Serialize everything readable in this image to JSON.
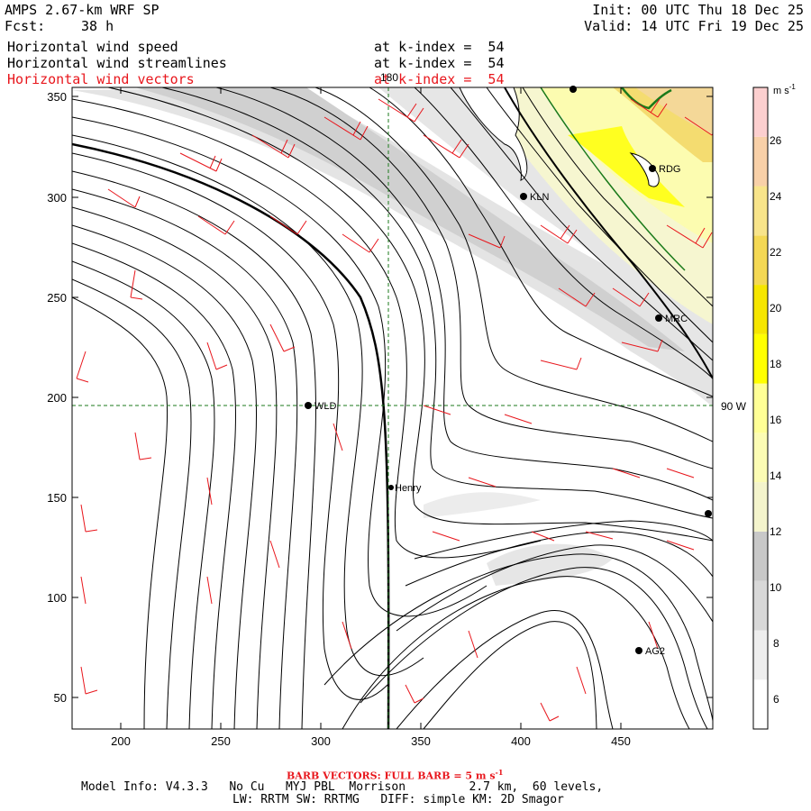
{
  "header": {
    "model": "AMPS 2.67-km WRF SP",
    "forecast_label": "Fcst:",
    "forecast_hours": "38 h",
    "init": "Init: 00 UTC Thu 18 Dec 25",
    "valid": "Valid: 14 UTC Fri 19 Dec 25"
  },
  "fields": [
    {
      "name": "Horizontal wind speed",
      "level": "at k-index =  54",
      "color": "#000000"
    },
    {
      "name": "Horizontal wind streamlines",
      "level": "at k-index =  54",
      "color": "#000000"
    },
    {
      "name": "Horizontal wind vectors",
      "level": "at k-index =  54",
      "color": "#e8161c"
    }
  ],
  "map": {
    "x_ticks": [
      "200",
      "250",
      "300",
      "350",
      "400",
      "450"
    ],
    "y_ticks": [
      "350",
      "300",
      "250",
      "200",
      "150",
      "100",
      "50"
    ],
    "meridian_label": "180",
    "parallel_label": "90 W",
    "stations": [
      {
        "id": "RDG"
      },
      {
        "id": "KLN"
      },
      {
        "id": "MRC"
      },
      {
        "id": "WLD"
      },
      {
        "id": "Henry"
      },
      {
        "id": "AG2"
      }
    ]
  },
  "colorbar": {
    "units": "m s",
    "units_exp": "-1",
    "levels": [
      "6",
      "8",
      "10",
      "12",
      "14",
      "16",
      "18",
      "20",
      "22",
      "24",
      "26"
    ],
    "colors": [
      "#ffffff",
      "#eeeeee",
      "#d8d8d8",
      "#c8c8c8",
      "#f4f4cc",
      "#fcfcb4",
      "#ffff96",
      "#ffff00",
      "#f6e600",
      "#f4d854",
      "#f8e48a",
      "#f8d0a8",
      "#fccfcf"
    ]
  },
  "footer": {
    "barb_label": "BARB VECTORS: FULL BARB = 5 m s",
    "barb_exp": "-1",
    "model_info": "Model Info: V4.3.3   No Cu   MYJ PBL  Morrison         2.7 km,  60 levels,",
    "physics": "LW: RRTM SW: RRTMG   DIFF: simple KM: 2D Smagor"
  }
}
